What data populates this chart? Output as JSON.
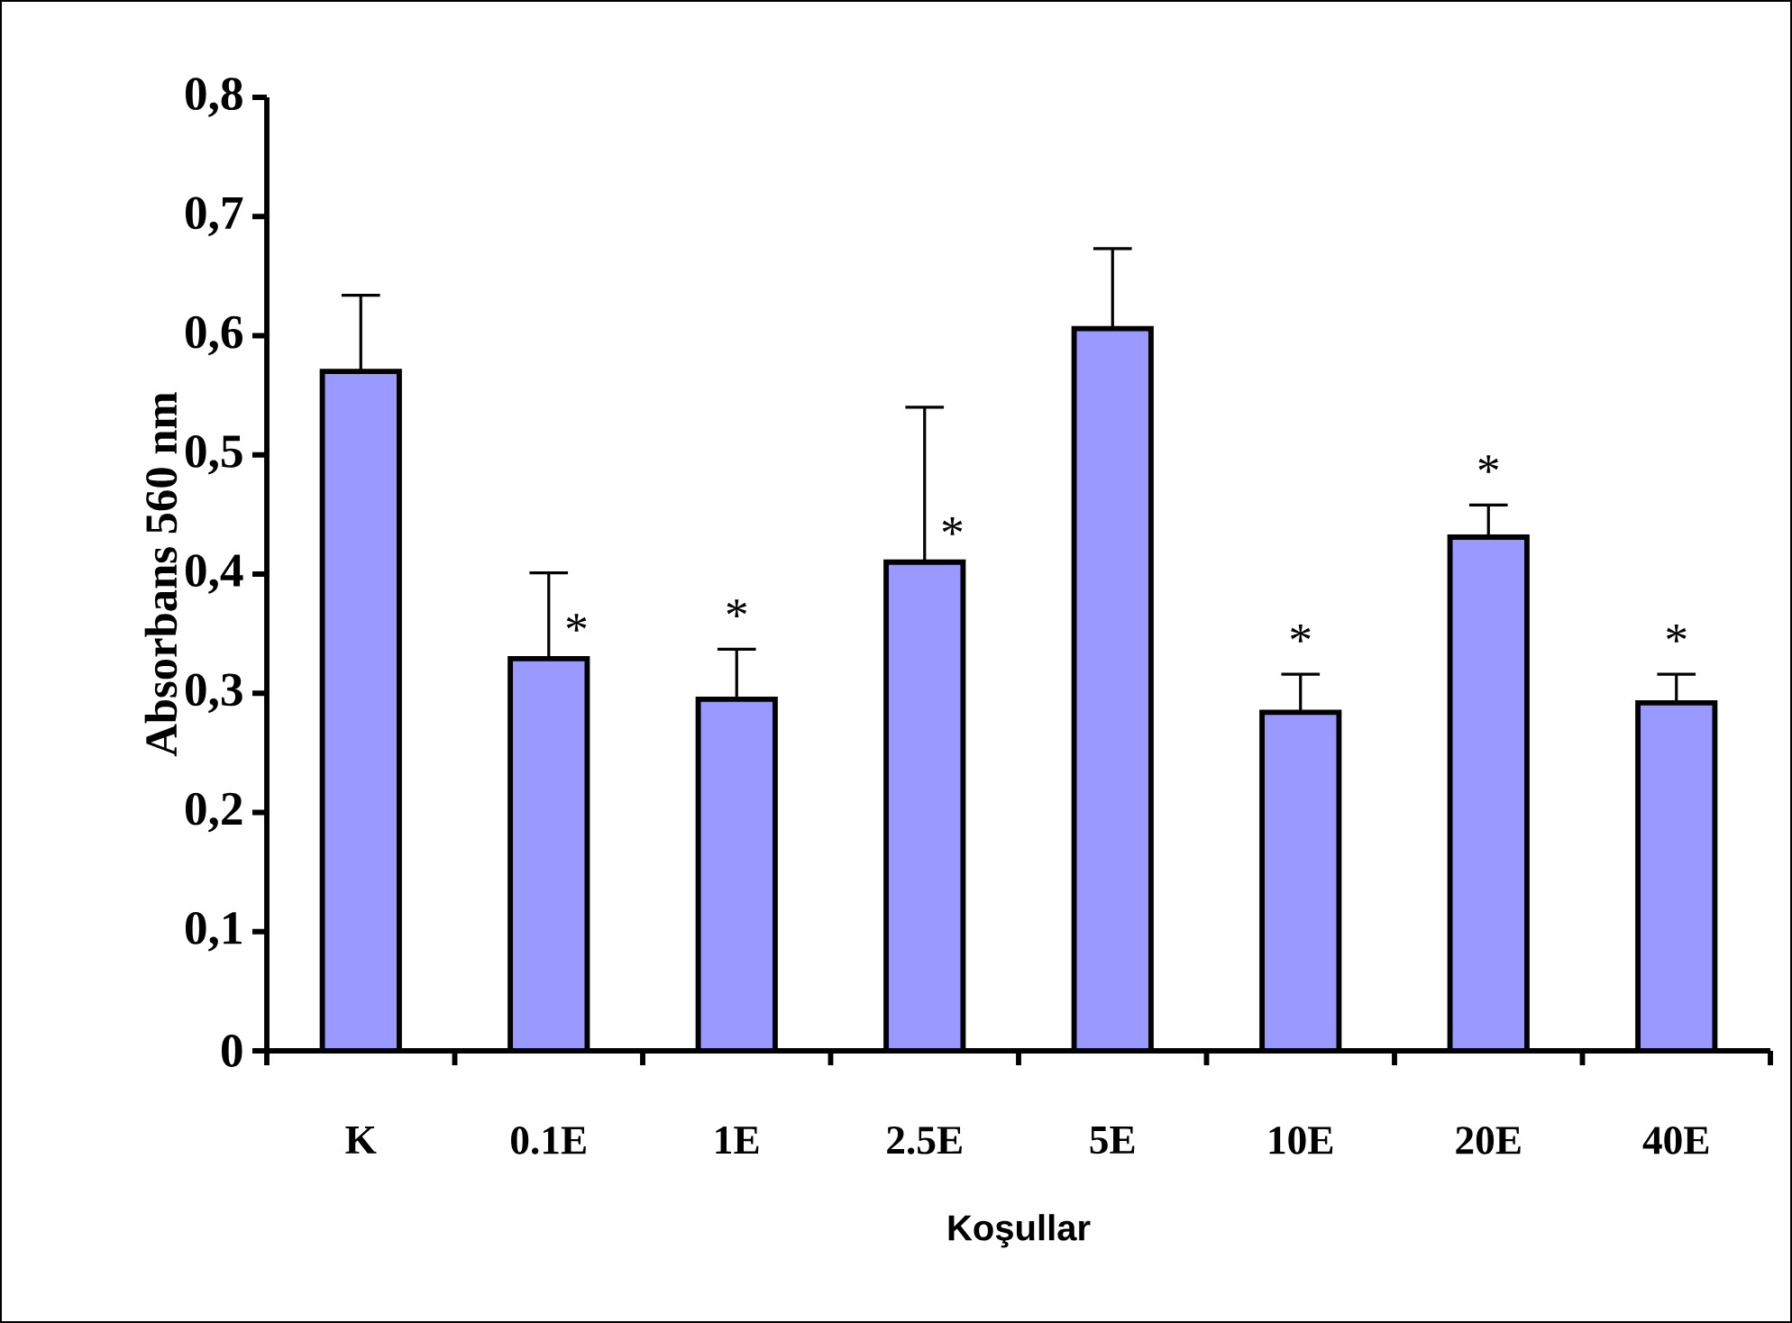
{
  "chart_data": {
    "type": "bar",
    "xlabel": "Koşullar",
    "ylabel": "Absorbans 560 nm",
    "categories": [
      "K",
      "0.1E",
      "1E",
      "2.5E",
      "5E",
      "10E",
      "20E",
      "40E"
    ],
    "values": [
      0.57,
      0.329,
      0.295,
      0.41,
      0.606,
      0.284,
      0.431,
      0.292
    ],
    "errors": [
      [
        0.57,
        0.634
      ],
      [
        0.329,
        0.401
      ],
      [
        0.295,
        0.337
      ],
      [
        0.41,
        0.54
      ],
      [
        0.606,
        0.673
      ],
      [
        0.284,
        0.316
      ],
      [
        0.431,
        0.458
      ],
      [
        0.292,
        0.316
      ]
    ],
    "value_labels": [
      null,
      "*",
      "*",
      "*",
      null,
      "*",
      "*",
      "*"
    ],
    "color": "#9999ff",
    "ylim": [
      0,
      0.8
    ],
    "yticks": [
      0,
      {
        "value": 0.1,
        "label": "0,1"
      },
      {
        "value": 0.2,
        "label": "0,2"
      },
      {
        "value": 0.3,
        "label": "0,3"
      },
      {
        "value": 0.4,
        "label": "0,4"
      },
      {
        "value": 0.5,
        "label": "0,5"
      },
      {
        "value": 0.6,
        "label": "0,6"
      },
      {
        "value": 0.7,
        "label": "0,7"
      },
      {
        "value": 0.8,
        "label": "0,8"
      }
    ],
    "grid": false
  }
}
